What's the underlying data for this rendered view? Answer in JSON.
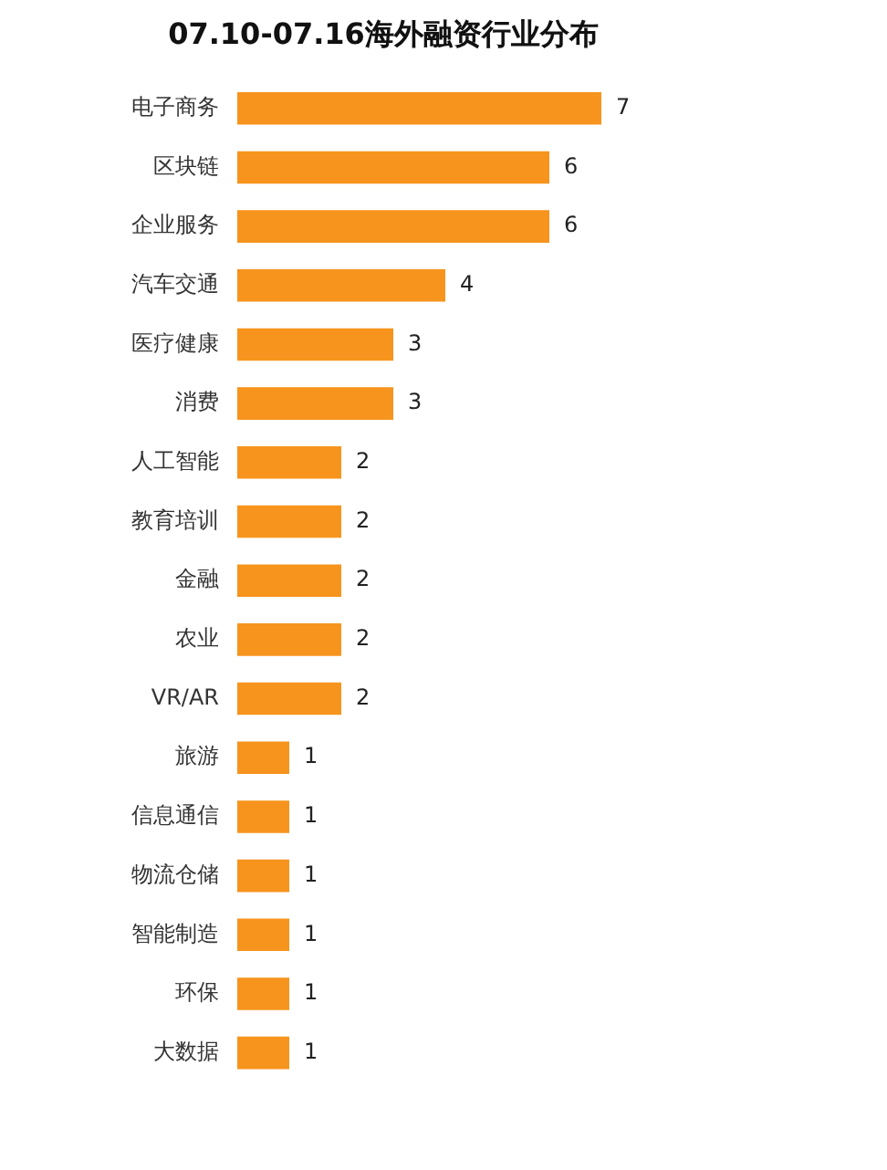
{
  "chart_data": {
    "type": "bar",
    "orientation": "horizontal",
    "title": "07.10-07.16海外融资行业分布",
    "categories": [
      "电子商务",
      "区块链",
      "企业服务",
      "汽车交通",
      "医疗健康",
      "消费",
      "人工智能",
      "教育培训",
      "金融",
      "农业",
      "VR/AR",
      "旅游",
      "信息通信",
      "物流仓储",
      "智能制造",
      "环保",
      "大数据"
    ],
    "values": [
      7,
      6,
      6,
      4,
      3,
      3,
      2,
      2,
      2,
      2,
      2,
      1,
      1,
      1,
      1,
      1,
      1
    ],
    "color": "#f7941d",
    "data_labels": true
  }
}
